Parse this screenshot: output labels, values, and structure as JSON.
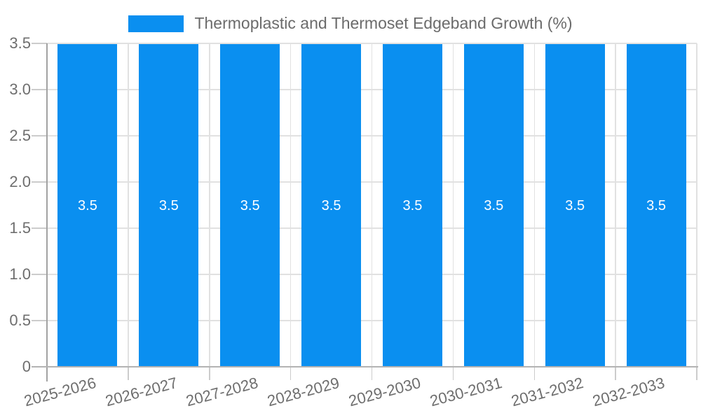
{
  "chart_data": {
    "type": "bar",
    "title": "Thermoplastic and Thermoset Edgeband Growth (%)",
    "categories": [
      "2025-2026",
      "2026-2027",
      "2027-2028",
      "2028-2029",
      "2029-2030",
      "2030-2031",
      "2031-2032",
      "2032-2033"
    ],
    "values": [
      3.5,
      3.5,
      3.5,
      3.5,
      3.5,
      3.5,
      3.5,
      3.5
    ],
    "bar_labels": [
      "3.5",
      "3.5",
      "3.5",
      "3.5",
      "3.5",
      "3.5",
      "3.5",
      "3.5"
    ],
    "xlabel": "",
    "ylabel": "",
    "ylim": [
      0,
      3.5
    ],
    "ytick_values": [
      0,
      0.5,
      1,
      1.5,
      2,
      2.5,
      3,
      3.5
    ],
    "ytick_labels": [
      "0",
      "0.5",
      "1.0",
      "1.5",
      "2.0",
      "2.5",
      "3.0",
      "3.5"
    ],
    "grid": true,
    "legend_position": "top",
    "colors": {
      "bar": "#0a8ff0",
      "bar_label": "#ffffff",
      "grid": "#e1e1e1",
      "tick": "#cccccc",
      "y_axis_line": "#a2a2a2",
      "x_axis_line": "#b3b3b3",
      "text": "#6e6e6e"
    }
  }
}
